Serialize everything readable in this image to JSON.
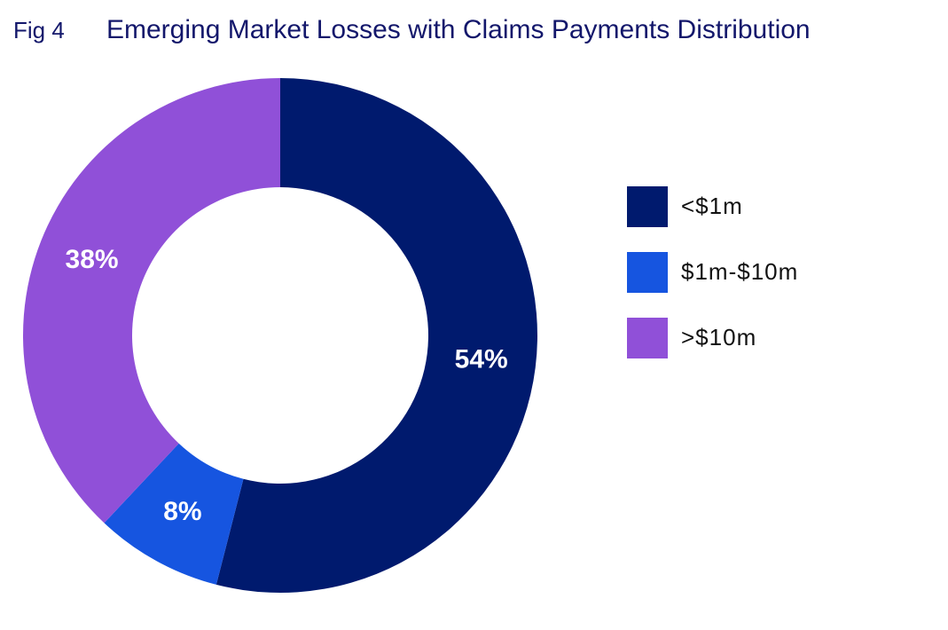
{
  "chart_data": {
    "type": "pie",
    "figure_label": "Fig 4",
    "title": "Emerging Market Losses with Claims Payments Distribution",
    "categories": [
      "<$1m",
      "$1m-$10m",
      ">$10m"
    ],
    "values": [
      54,
      8,
      38
    ],
    "value_labels": [
      "54%",
      "8%",
      "38%"
    ],
    "colors": [
      "#001a6e",
      "#1655e0",
      "#9050d8"
    ],
    "donut": true,
    "legend": "right"
  }
}
